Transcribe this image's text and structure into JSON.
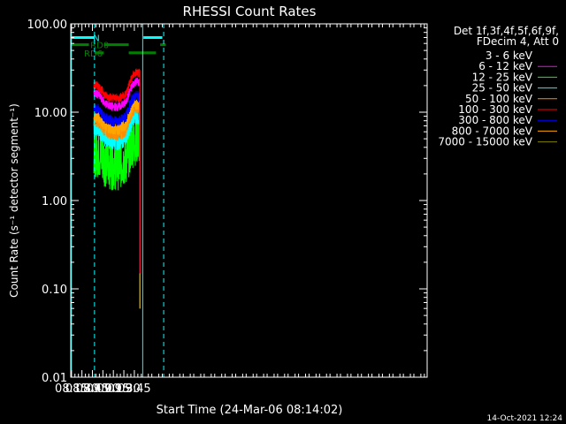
{
  "footer_timestamp": "14-Oct-2021 12:24",
  "chart_data": {
    "type": "line",
    "title": "RHESSI Count Rates",
    "xlabel": "Start Time (24-Mar-06 08:14:02)",
    "ylabel": "Count Rate (s⁻¹ detector segment⁻¹)",
    "yscale": "log",
    "ylim": [
      0.01,
      100
    ],
    "xlim_min": [
      494,
      1004
    ],
    "x_ticks": [
      "08:15",
      "08:30",
      "08:45",
      "09:00",
      "09:15",
      "09:30",
      "09:45"
    ],
    "x_ticks_min": [
      495,
      510,
      525,
      540,
      555,
      570,
      585
    ],
    "y_ticks": [
      "0.01",
      "0.10",
      "1.00",
      "10.00",
      "100.00"
    ],
    "y_ticks_val": [
      0.01,
      0.1,
      1,
      10,
      100
    ],
    "legend": {
      "header1": "Det 1f,3f,4f,5f,6f,9f,",
      "header2": "FDecim 4, Att 0",
      "placement": "right"
    },
    "series": [
      {
        "name": "3 - 6 keV",
        "color": "#000000",
        "level": 3.2
      },
      {
        "name": "6 - 12 keV",
        "color": "#ff00ff",
        "level": 16
      },
      {
        "name": "12 - 25 keV",
        "color": "#00ff00",
        "level": 3.6
      },
      {
        "name": "25 - 50 keV",
        "color": "#00ffff",
        "level": 6.5
      },
      {
        "name": "50 - 100 keV",
        "color": "#ff8c00",
        "level": 8
      },
      {
        "name": "100 - 300 keV",
        "color": "#ff0000",
        "level": 20
      },
      {
        "name": "300 - 800 keV",
        "color": "#0000ff",
        "level": 11
      },
      {
        "name": "800 - 7000 keV",
        "color": "#ffa500",
        "level": 9
      },
      {
        "name": "7000 - 15000 keV",
        "color": "#808000",
        "level": 0
      }
    ],
    "profile": [
      {
        "t": 527,
        "f": 1.0
      },
      {
        "t": 533,
        "f": 1.0
      },
      {
        "t": 543,
        "f": 0.78
      },
      {
        "t": 553,
        "f": 0.72
      },
      {
        "t": 563,
        "f": 0.72
      },
      {
        "t": 573,
        "f": 0.8
      },
      {
        "t": 578,
        "f": 1.05
      },
      {
        "t": 583,
        "f": 1.3
      },
      {
        "t": 588,
        "f": 1.4
      },
      {
        "t": 593,
        "f": 1.35
      }
    ],
    "flags": [
      {
        "label": "N",
        "color": "#00ffff",
        "segments": [
          [
            495,
            528
          ],
          [
            598,
            625
          ]
        ],
        "level": 70
      },
      {
        "label": "RD0",
        "color": "#008000",
        "segments": [
          [
            495,
            520
          ],
          [
            542,
            577
          ],
          [
            622,
            630
          ]
        ],
        "level": 58
      },
      {
        "label": "RD6",
        "color": "#008000",
        "segments": [
          [
            528,
            541
          ],
          [
            577,
            616
          ]
        ],
        "level": 47
      }
    ],
    "vlines_solid_min": [
      495,
      597
    ],
    "vlines_dashed_min": [
      528,
      627
    ]
  }
}
